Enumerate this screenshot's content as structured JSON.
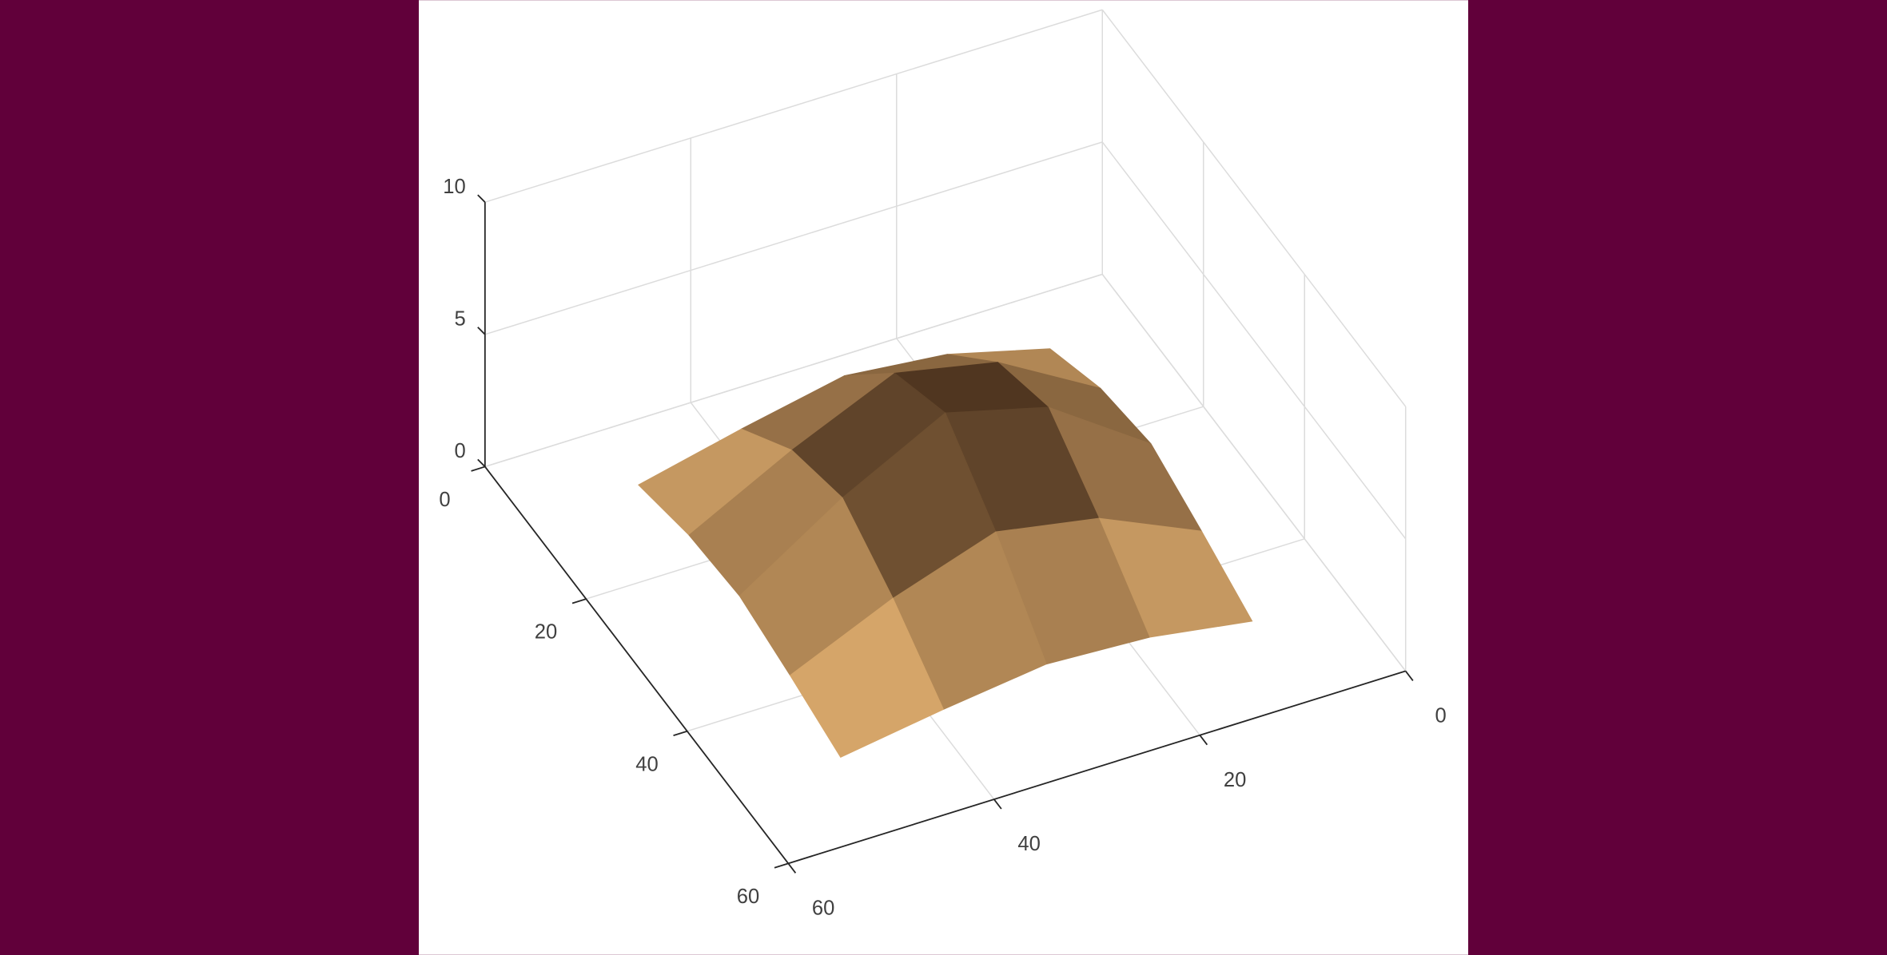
{
  "chart_data": {
    "type": "surface",
    "x": [
      10,
      20,
      30,
      40,
      50
    ],
    "y": [
      10,
      20,
      30,
      40,
      50
    ],
    "z": [
      [
        0.9,
        1.9,
        2.3,
        1.5,
        0.6
      ],
      [
        1.9,
        4.1,
        4.9,
        3.2,
        1.2
      ],
      [
        2.3,
        4.9,
        5.9,
        3.9,
        1.4
      ],
      [
        1.5,
        3.2,
        3.9,
        2.6,
        0.9
      ],
      [
        0.6,
        1.2,
        1.4,
        0.9,
        0.3
      ]
    ],
    "xlim": [
      0,
      60
    ],
    "xticks": [
      0,
      20,
      40,
      60
    ],
    "ylim": [
      0,
      60
    ],
    "yticks": [
      0,
      20,
      40,
      60
    ],
    "zlim": [
      0,
      10
    ],
    "zticks": [
      0,
      5,
      10
    ],
    "grid": true,
    "colormap": [
      "#ffc880",
      "#2e1a0e"
    ]
  }
}
